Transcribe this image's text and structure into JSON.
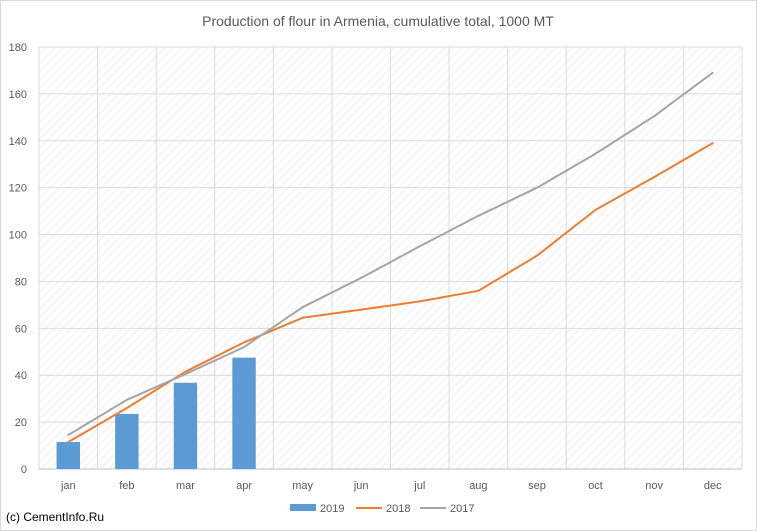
{
  "chart_data": {
    "type": "bar",
    "title": "Production of flour in Armenia, cumulative total, 1000 MT",
    "xlabel": "",
    "ylabel": "",
    "categories": [
      "jan",
      "feb",
      "mar",
      "apr",
      "may",
      "jun",
      "jul",
      "aug",
      "sep",
      "oct",
      "nov",
      "dec"
    ],
    "ylim": [
      0,
      180
    ],
    "yticks": [
      0,
      20,
      40,
      60,
      80,
      100,
      120,
      140,
      160,
      180
    ],
    "grid": true,
    "legend_position": "bottom",
    "series": [
      {
        "name": "2019",
        "type": "bar",
        "color": "#5b9bd5",
        "values": [
          11.5,
          23.5,
          36.8,
          47.5,
          null,
          null,
          null,
          null,
          null,
          null,
          null,
          null
        ]
      },
      {
        "name": "2018",
        "type": "line",
        "color": "#ed7d31",
        "values": [
          11.5,
          26,
          41.5,
          54,
          64.5,
          68,
          71.5,
          76,
          91,
          110.5,
          124.5,
          139
        ]
      },
      {
        "name": "2017",
        "type": "line",
        "color": "#a5a5a5",
        "values": [
          14.5,
          29.5,
          40.5,
          52,
          69,
          81.5,
          95,
          108,
          120,
          134.5,
          150.5,
          169
        ]
      }
    ]
  },
  "watermark": "(c) CementInfo.Ru"
}
